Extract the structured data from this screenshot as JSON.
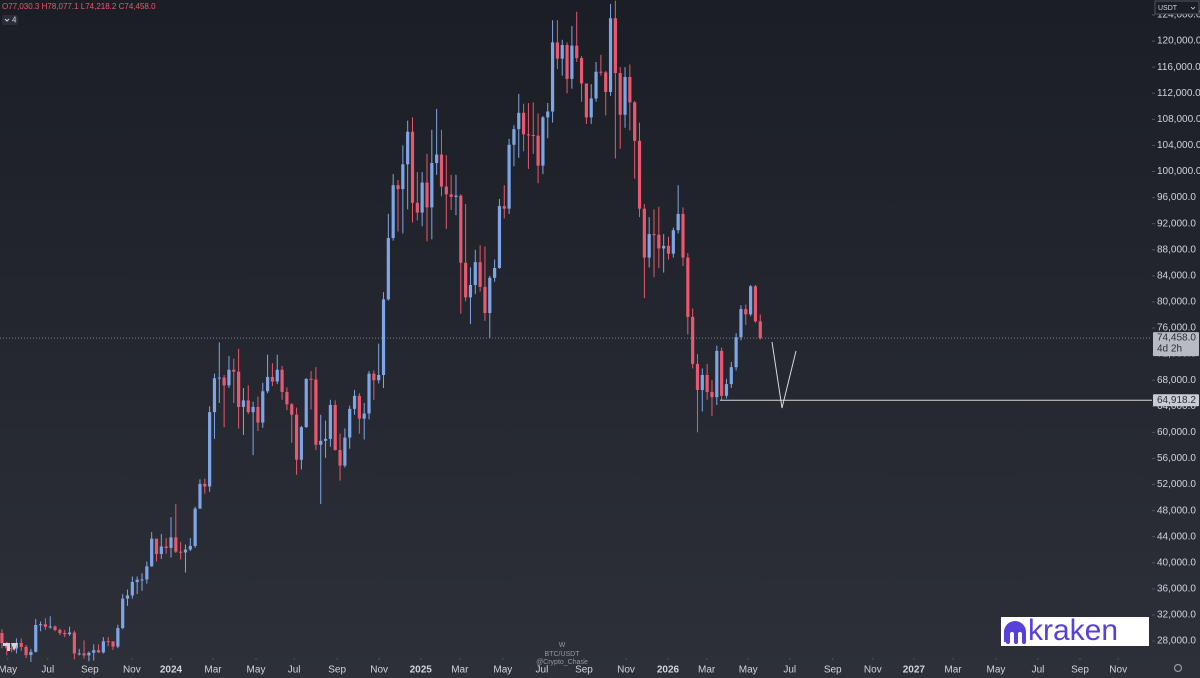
{
  "chart_data": {
    "type": "candlestick",
    "symbol": "BTC/USDT",
    "interval": "W",
    "author": "@Crypto_Chase",
    "currency": "USDT",
    "collapsed_indicators": "4",
    "brand": "kraken",
    "status_line": [
      "O77,030.3",
      "H78,077.1",
      "L74,218.2",
      "C74,458.0"
    ],
    "last_price_label": "74,458.0",
    "countdown": "4d 2h",
    "level": {
      "value": 64918.2,
      "label": "64,918.2"
    },
    "up_color": "#7ea6e6",
    "down_color": "#e8586e",
    "grid": false,
    "open": [
      29230,
      27700,
      26900,
      26850,
      27700,
      27100,
      25850,
      26340,
      30460,
      30580,
      30170,
      30230,
      29700,
      29230,
      29050,
      29300,
      26100,
      26100,
      25800,
      26200,
      26600,
      26250,
      27970,
      27920,
      27150,
      29990,
      34500,
      35000,
      37050,
      37400,
      37450,
      39450,
      43700,
      41350,
      42500,
      42280,
      43900,
      41700,
      41580,
      42030,
      42580,
      48300,
      52100,
      51700,
      63100,
      68300,
      68400,
      67200,
      69600,
      69300,
      63900,
      64900,
      63100,
      63900,
      61500,
      66300,
      68500,
      67800,
      69600,
      66200,
      64300,
      62700,
      55800,
      60800,
      68200,
      68100,
      58100,
      58700,
      59000,
      64200,
      57300,
      54900,
      59200,
      63600,
      65600,
      62100,
      62900,
      69000,
      68000,
      68800,
      80400,
      89800,
      97900,
      97300,
      101100,
      106100,
      95200,
      93700,
      98300,
      94500,
      101300,
      102600,
      97700,
      96500,
      96100,
      96300,
      86000,
      80700,
      82600,
      86100,
      82300,
      78300,
      83700,
      85200,
      94700,
      94300,
      104100,
      106500,
      109000,
      105700,
      105600,
      105500,
      100900,
      108300,
      109200,
      119800,
      117300,
      119400,
      114200,
      119300,
      117400,
      113500,
      108300,
      111200,
      115300,
      115200,
      112200,
      123500,
      115100,
      108700,
      114500,
      110600,
      104700,
      94300,
      86800,
      90400,
      90300,
      88200,
      88600,
      87400,
      91000,
      93500,
      86800,
      77700,
      70500,
      66500,
      68800,
      66200,
      65400,
      72500,
      65600,
      67400,
      70000,
      74600,
      78900,
      78100,
      82400,
      77030.3
    ],
    "high": [
      29800,
      27900,
      27500,
      28400,
      28400,
      27400,
      26800,
      31400,
      31000,
      31500,
      31800,
      30400,
      29900,
      29700,
      30200,
      29600,
      26800,
      28100,
      26400,
      27500,
      27500,
      28600,
      28600,
      28000,
      30500,
      35200,
      35900,
      37900,
      37900,
      38400,
      40200,
      44700,
      43700,
      44400,
      43800,
      47000,
      49000,
      43200,
      42800,
      43800,
      48600,
      52800,
      52900,
      64000,
      69000,
      73800,
      68800,
      71700,
      71300,
      72800,
      66800,
      67200,
      64700,
      65500,
      67600,
      71900,
      70600,
      71900,
      70200,
      66900,
      64500,
      63800,
      61000,
      68300,
      69400,
      70000,
      62700,
      61800,
      65000,
      64900,
      59800,
      60600,
      64100,
      66500,
      66000,
      64500,
      69400,
      69500,
      73600,
      81500,
      93500,
      99600,
      98700,
      104000,
      107800,
      108300,
      99900,
      99900,
      102700,
      106400,
      109600,
      106400,
      102500,
      99500,
      99500,
      96500,
      95000,
      85300,
      88000,
      88700,
      88500,
      84000,
      86500,
      95800,
      97900,
      105000,
      107100,
      111900,
      110400,
      110500,
      110600,
      108900,
      108500,
      110500,
      123200,
      123200,
      120200,
      119800,
      122300,
      124500,
      117700,
      113500,
      113400,
      116800,
      117900,
      115400,
      125700,
      126200,
      116000,
      116000,
      116400,
      110800,
      107500,
      95000,
      93000,
      94200,
      94600,
      90400,
      90000,
      91400,
      97900,
      94500,
      87500,
      79000,
      72000,
      69800,
      70500,
      68000,
      73300,
      73000,
      68200,
      70800,
      75200,
      79500,
      79600,
      82600,
      82600,
      78077.1
    ],
    "low": [
      26900,
      25800,
      26300,
      26100,
      26500,
      25400,
      24800,
      26250,
      29500,
      29700,
      29900,
      29500,
      28900,
      28600,
      28800,
      25200,
      25800,
      25300,
      24900,
      25000,
      26200,
      26100,
      27200,
      26600,
      26900,
      29800,
      33400,
      34500,
      35200,
      35700,
      36800,
      39400,
      40200,
      40600,
      41400,
      40800,
      41500,
      40500,
      38500,
      41800,
      42300,
      48300,
      50600,
      50900,
      59000,
      64500,
      60800,
      66800,
      64500,
      60600,
      59600,
      62800,
      56500,
      60200,
      60700,
      66000,
      67100,
      67400,
      65000,
      63400,
      58400,
      53500,
      54300,
      60700,
      63500,
      57300,
      49000,
      56100,
      57800,
      57200,
      52600,
      54600,
      57500,
      62700,
      59800,
      58900,
      62000,
      65000,
      67500,
      66800,
      80200,
      89400,
      90800,
      90500,
      94200,
      92200,
      92500,
      91600,
      89300,
      89600,
      99500,
      96200,
      91200,
      94100,
      93300,
      78200,
      80100,
      76600,
      81200,
      81600,
      77100,
      74500,
      83100,
      85100,
      92800,
      93500,
      100800,
      102100,
      103100,
      100400,
      102700,
      98200,
      99600,
      105100,
      107500,
      115700,
      114700,
      112000,
      112700,
      116800,
      110700,
      107300,
      107300,
      110700,
      114700,
      108600,
      111600,
      102000,
      103500,
      106700,
      106300,
      98900,
      93000,
      80600,
      85300,
      83800,
      85200,
      84500,
      86500,
      86800,
      90500,
      85500,
      75000,
      69800,
      60000,
      63200,
      65000,
      62500,
      64200,
      64918.2,
      65200,
      66800,
      69500,
      74100,
      76500,
      77800,
      76800,
      74218.2
    ],
    "close": [
      27700,
      26900,
      26850,
      27700,
      27100,
      25850,
      26340,
      30460,
      30580,
      30170,
      30230,
      29700,
      29230,
      29050,
      29300,
      26100,
      26100,
      25800,
      26200,
      26600,
      26250,
      27970,
      27920,
      27150,
      29990,
      34500,
      35000,
      37050,
      37400,
      37450,
      39450,
      43700,
      41350,
      42500,
      42280,
      43900,
      41700,
      41580,
      42030,
      42580,
      48300,
      52100,
      51700,
      63100,
      68300,
      68400,
      67200,
      69600,
      69300,
      63900,
      64900,
      63100,
      63900,
      61500,
      66300,
      68500,
      67800,
      69600,
      66200,
      64300,
      62700,
      55800,
      60800,
      68200,
      68100,
      58100,
      58700,
      59000,
      64200,
      57300,
      54900,
      59200,
      63600,
      65600,
      62100,
      62900,
      69000,
      68000,
      68800,
      80400,
      89800,
      97900,
      97300,
      101100,
      106100,
      95200,
      93700,
      98300,
      94500,
      101300,
      102600,
      97700,
      96500,
      96100,
      96300,
      86000,
      80700,
      82600,
      86100,
      82300,
      78300,
      83700,
      85200,
      94700,
      94300,
      104100,
      106500,
      109000,
      105700,
      105600,
      105500,
      100900,
      108300,
      109200,
      119800,
      117300,
      119400,
      114200,
      119300,
      117400,
      113500,
      108300,
      111200,
      115300,
      115200,
      112200,
      123500,
      115100,
      108700,
      114500,
      110600,
      104700,
      94300,
      86800,
      90400,
      90300,
      88200,
      88600,
      87400,
      91000,
      93500,
      86800,
      77700,
      70500,
      66500,
      68800,
      66200,
      65400,
      72500,
      65600,
      67400,
      70000,
      74600,
      78900,
      78100,
      82400,
      77030.3,
      74458.0
    ],
    "xlim": [
      -0.4,
      238.1
    ],
    "xticks": [
      {
        "value": 1.2,
        "label": "May"
      },
      {
        "value": 9.5,
        "label": "Jul"
      },
      {
        "value": 18.2,
        "label": "Sep"
      },
      {
        "value": 26.9,
        "label": "Nov"
      },
      {
        "value": 35.0,
        "label": "2024"
      },
      {
        "value": 43.7,
        "label": "Mar"
      },
      {
        "value": 52.6,
        "label": "May"
      },
      {
        "value": 60.5,
        "label": "Jul"
      },
      {
        "value": 69.4,
        "label": "Sep"
      },
      {
        "value": 78.1,
        "label": "Nov"
      },
      {
        "value": 86.7,
        "label": "2025"
      },
      {
        "value": 94.8,
        "label": "Mar"
      },
      {
        "value": 103.7,
        "label": "May"
      },
      {
        "value": 111.8,
        "label": "Jul"
      },
      {
        "value": 120.5,
        "label": "Sep"
      },
      {
        "value": 129.2,
        "label": "Nov"
      },
      {
        "value": 137.9,
        "label": "2026"
      },
      {
        "value": 145.9,
        "label": "Mar"
      },
      {
        "value": 154.5,
        "label": "May"
      },
      {
        "value": 163.1,
        "label": "Jul"
      },
      {
        "value": 172.0,
        "label": "Sep"
      },
      {
        "value": 180.3,
        "label": "Nov"
      },
      {
        "value": 188.8,
        "label": "2027"
      },
      {
        "value": 196.9,
        "label": "Mar"
      },
      {
        "value": 205.8,
        "label": "May"
      },
      {
        "value": 214.5,
        "label": "Jul"
      },
      {
        "value": 223.2,
        "label": "Sep"
      },
      {
        "value": 231.1,
        "label": "Nov"
      }
    ],
    "ylim": [
      25400,
      126300
    ],
    "yticks": [
      {
        "value": 28000,
        "label": "28,000.0"
      },
      {
        "value": 32000,
        "label": "32,000.0"
      },
      {
        "value": 36000,
        "label": "36,000.0"
      },
      {
        "value": 40000,
        "label": "40,000.0"
      },
      {
        "value": 44000,
        "label": "44,000.0"
      },
      {
        "value": 48000,
        "label": "48,000.0"
      },
      {
        "value": 52000,
        "label": "52,000.0"
      },
      {
        "value": 56000,
        "label": "56,000.0"
      },
      {
        "value": 60000,
        "label": "60,000.0"
      },
      {
        "value": 64000,
        "label": "64,000.0"
      },
      {
        "value": 68000,
        "label": "68,000.0"
      },
      {
        "value": 72000,
        "label": "72,000.0"
      },
      {
        "value": 76000,
        "label": "76,000.0"
      },
      {
        "value": 80000,
        "label": "80,000.0"
      },
      {
        "value": 84000,
        "label": "84,000.0"
      },
      {
        "value": 88000,
        "label": "88,000.0"
      },
      {
        "value": 92000,
        "label": "92,000.0"
      },
      {
        "value": 96000,
        "label": "96,000.0"
      },
      {
        "value": 100000,
        "label": "100,000.0"
      },
      {
        "value": 104000,
        "label": "104,000.0"
      },
      {
        "value": 108000,
        "label": "108,000.0"
      },
      {
        "value": 112000,
        "label": "112,000.0"
      },
      {
        "value": 116000,
        "label": "116,000.0"
      },
      {
        "value": 120000,
        "label": "120,000.0"
      },
      {
        "value": 124000,
        "label": "124,000.0"
      }
    ]
  }
}
